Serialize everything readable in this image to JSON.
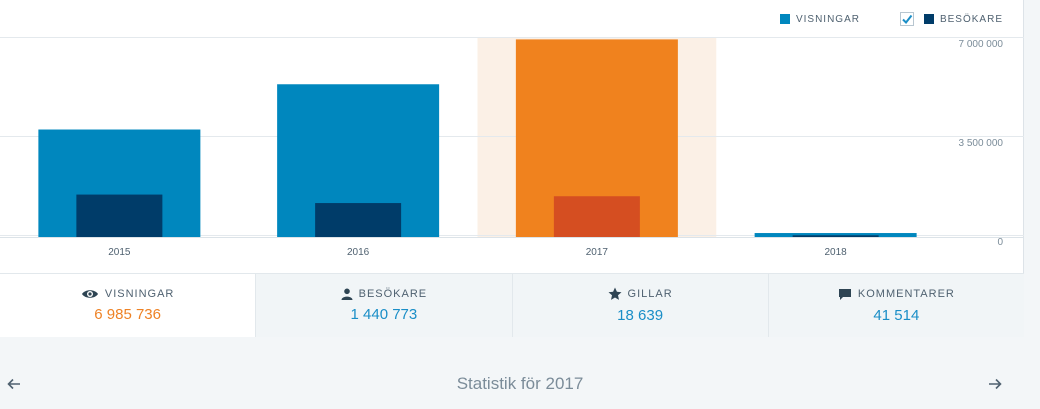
{
  "legend": {
    "views_label": "VISNINGAR",
    "visitors_label": "BESÖKARE",
    "visitors_checked": true
  },
  "colors": {
    "views": "#0087be",
    "visitors": "#003c69",
    "views_highlight": "#f0821e",
    "visitors_highlight": "#d54e21",
    "highlight_bg": "#fbf0e6"
  },
  "chart_data": {
    "type": "bar",
    "categories": [
      "2015",
      "2016",
      "2017",
      "2018"
    ],
    "series": [
      {
        "name": "VISNINGAR",
        "values": [
          3800000,
          5400000,
          6985736,
          140000
        ]
      },
      {
        "name": "BESÖKARE",
        "values": [
          1500000,
          1200000,
          1440773,
          60000
        ]
      }
    ],
    "highlighted_category": "2017",
    "ylim": [
      0,
      7000000
    ],
    "y_ticks": [
      {
        "value": 7000000,
        "label": "7 000 000"
      },
      {
        "value": 3500000,
        "label": "3 500 000"
      },
      {
        "value": 0,
        "label": "0"
      }
    ],
    "grid": true
  },
  "tabs": [
    {
      "label": "VISNINGAR",
      "value": "6 985 736",
      "icon": "eye-icon",
      "active": true
    },
    {
      "label": "BESÖKARE",
      "value": "1 440 773",
      "icon": "person-icon",
      "active": false
    },
    {
      "label": "GILLAR",
      "value": "18 639",
      "icon": "star-icon",
      "active": false
    },
    {
      "label": "KOMMENTARER",
      "value": "41 514",
      "icon": "comment-icon",
      "active": false
    }
  ],
  "footer": {
    "title": "Statistik för 2017",
    "prev_icon": "arrow-left-icon",
    "next_icon": "arrow-right-icon"
  }
}
